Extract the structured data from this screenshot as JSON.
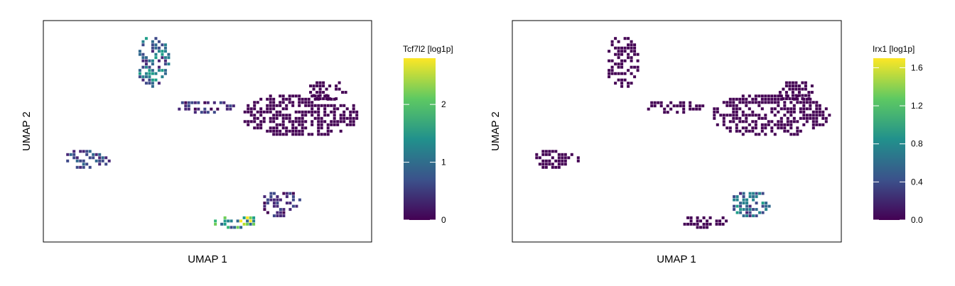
{
  "chart_data": [
    {
      "type": "heatmap",
      "subtype": "hexbin-embedding",
      "xlabel": "UMAP 1",
      "ylabel": "UMAP 2",
      "colorbar": {
        "title": "Tcf7l2 [log1p]",
        "range": [
          0,
          2.8
        ],
        "ticks": [
          0,
          1,
          2
        ],
        "tick_labels": [
          "0",
          "1",
          "2"
        ],
        "colormap": "viridis"
      },
      "clusters": [
        {
          "x": 0.33,
          "y": 0.82,
          "rx": 0.05,
          "ry": 0.12,
          "value": 1.0
        },
        {
          "x": 0.13,
          "y": 0.38,
          "rx": 0.07,
          "ry": 0.05,
          "value": 0.7
        },
        {
          "x": 0.49,
          "y": 0.62,
          "rx": 0.09,
          "ry": 0.03,
          "value": 0.5
        },
        {
          "x": 0.78,
          "y": 0.58,
          "rx": 0.18,
          "ry": 0.1,
          "value": 0.15
        },
        {
          "x": 0.86,
          "y": 0.69,
          "rx": 0.06,
          "ry": 0.05,
          "value": 0.1
        },
        {
          "x": 0.72,
          "y": 0.18,
          "rx": 0.06,
          "ry": 0.06,
          "value": 0.5
        },
        {
          "x": 0.58,
          "y": 0.1,
          "rx": 0.07,
          "ry": 0.03,
          "value": 2.0
        }
      ]
    },
    {
      "type": "heatmap",
      "subtype": "hexbin-embedding",
      "xlabel": "UMAP 1",
      "ylabel": "UMAP 2",
      "colorbar": {
        "title": "Irx1 [log1p]",
        "range": [
          0,
          1.7
        ],
        "ticks": [
          0.0,
          0.4,
          0.8,
          1.2,
          1.6
        ],
        "tick_labels": [
          "0.0",
          "0.4",
          "0.8",
          "1.2",
          "1.6"
        ],
        "colormap": "viridis"
      },
      "clusters": [
        {
          "x": 0.33,
          "y": 0.82,
          "rx": 0.05,
          "ry": 0.12,
          "value": 0.1
        },
        {
          "x": 0.13,
          "y": 0.38,
          "rx": 0.07,
          "ry": 0.05,
          "value": 0.1
        },
        {
          "x": 0.49,
          "y": 0.62,
          "rx": 0.09,
          "ry": 0.03,
          "value": 0.05
        },
        {
          "x": 0.78,
          "y": 0.58,
          "rx": 0.18,
          "ry": 0.1,
          "value": 0.05
        },
        {
          "x": 0.86,
          "y": 0.69,
          "rx": 0.06,
          "ry": 0.05,
          "value": 0.05
        },
        {
          "x": 0.72,
          "y": 0.18,
          "rx": 0.06,
          "ry": 0.06,
          "value": 0.6
        },
        {
          "x": 0.58,
          "y": 0.1,
          "rx": 0.07,
          "ry": 0.03,
          "value": 0.05
        }
      ]
    }
  ]
}
